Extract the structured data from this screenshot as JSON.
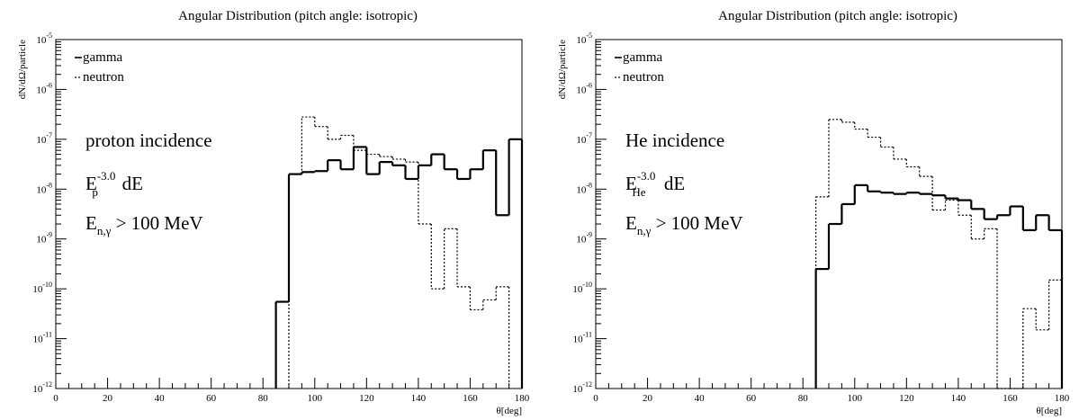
{
  "chart_data": [
    {
      "type": "line",
      "title": "Angular Distribution (pitch angle: isotropic)",
      "xlabel": "θ[deg]",
      "ylabel": "dN/dΩ/particle",
      "xlim": [
        0,
        180
      ],
      "ylim": [
        1e-12,
        1e-05
      ],
      "yscale": "log",
      "grid": false,
      "legend_placement": "top-left",
      "x_tick_labels": [
        "0",
        "20",
        "40",
        "60",
        "80",
        "100",
        "120",
        "140",
        "160",
        "180"
      ],
      "y_ticks": [
        {
          "base": "10",
          "exp": "-12"
        },
        {
          "base": "10",
          "exp": "-11"
        },
        {
          "base": "10",
          "exp": "-10"
        },
        {
          "base": "10",
          "exp": "-9"
        },
        {
          "base": "10",
          "exp": "-8"
        },
        {
          "base": "10",
          "exp": "-7"
        },
        {
          "base": "10",
          "exp": "-6"
        },
        {
          "base": "10",
          "exp": "-5"
        }
      ],
      "bin_width": 5,
      "annotations": {
        "line1": "proton incidence",
        "line2": {
          "base": "E",
          "sub": "p",
          "sup": "-3.0",
          "tail": " dE"
        },
        "line3": {
          "base": "E",
          "sub": "n,γ",
          "tail": " > 100 MeV"
        }
      },
      "series": [
        {
          "name": "gamma",
          "style": "solid",
          "bins": [
            [
              85,
              5.5e-11
            ],
            [
              90,
              2e-08
            ],
            [
              95,
              2.2e-08
            ],
            [
              100,
              2.3e-08
            ],
            [
              105,
              3.8e-08
            ],
            [
              110,
              2.5e-08
            ],
            [
              115,
              7e-08
            ],
            [
              120,
              2e-08
            ],
            [
              125,
              3.5e-08
            ],
            [
              130,
              3e-08
            ],
            [
              135,
              1.6e-08
            ],
            [
              140,
              3e-08
            ],
            [
              145,
              5e-08
            ],
            [
              150,
              2.5e-08
            ],
            [
              155,
              1.6e-08
            ],
            [
              160,
              2.5e-08
            ],
            [
              165,
              6e-08
            ],
            [
              170,
              3e-09
            ],
            [
              175,
              1e-07
            ]
          ]
        },
        {
          "name": "neutron",
          "style": "dotted",
          "bins": [
            [
              90,
              2e-08
            ],
            [
              95,
              2.8e-07
            ],
            [
              100,
              1.8e-07
            ],
            [
              105,
              1e-07
            ],
            [
              110,
              1.2e-07
            ],
            [
              115,
              6e-08
            ],
            [
              120,
              5e-08
            ],
            [
              125,
              4.5e-08
            ],
            [
              130,
              4e-08
            ],
            [
              135,
              3.5e-08
            ],
            [
              140,
              2e-09
            ],
            [
              145,
              1e-10
            ],
            [
              150,
              1.6e-09
            ],
            [
              155,
              1.1e-10
            ],
            [
              160,
              3.8e-11
            ],
            [
              165,
              6e-11
            ],
            [
              170,
              1.1e-10
            ]
          ]
        }
      ]
    },
    {
      "type": "line",
      "title": "Angular Distribution (pitch angle: isotropic)",
      "xlabel": "θ[deg]",
      "ylabel": "dN/dΩ/particle",
      "xlim": [
        0,
        180
      ],
      "ylim": [
        1e-12,
        1e-05
      ],
      "yscale": "log",
      "grid": false,
      "legend_placement": "top-left",
      "x_tick_labels": [
        "0",
        "20",
        "40",
        "60",
        "80",
        "100",
        "120",
        "140",
        "160",
        "180"
      ],
      "y_ticks": [
        {
          "base": "10",
          "exp": "-12"
        },
        {
          "base": "10",
          "exp": "-11"
        },
        {
          "base": "10",
          "exp": "-10"
        },
        {
          "base": "10",
          "exp": "-9"
        },
        {
          "base": "10",
          "exp": "-8"
        },
        {
          "base": "10",
          "exp": "-7"
        },
        {
          "base": "10",
          "exp": "-6"
        },
        {
          "base": "10",
          "exp": "-5"
        }
      ],
      "bin_width": 5,
      "annotations": {
        "line1": "He incidence",
        "line2": {
          "base": "E",
          "sub": "He",
          "sup": "-3.0",
          "tail": " dE"
        },
        "line3": {
          "base": "E",
          "sub": "n,γ",
          "tail": " > 100 MeV"
        }
      },
      "series": [
        {
          "name": "gamma",
          "style": "solid",
          "bins": [
            [
              85,
              2.5e-10
            ],
            [
              90,
              2e-09
            ],
            [
              95,
              5e-09
            ],
            [
              100,
              1.2e-08
            ],
            [
              105,
              9e-09
            ],
            [
              110,
              8.5e-09
            ],
            [
              115,
              8e-09
            ],
            [
              120,
              8.5e-09
            ],
            [
              125,
              8e-09
            ],
            [
              130,
              7.5e-09
            ],
            [
              135,
              6.5e-09
            ],
            [
              140,
              6e-09
            ],
            [
              145,
              4e-09
            ],
            [
              150,
              2.5e-09
            ],
            [
              155,
              3e-09
            ],
            [
              160,
              4.5e-09
            ],
            [
              165,
              1.5e-09
            ],
            [
              170,
              3e-09
            ],
            [
              175,
              1.5e-09
            ]
          ]
        },
        {
          "name": "neutron",
          "style": "dotted",
          "bins": [
            [
              85,
              7e-09
            ],
            [
              90,
              2.5e-07
            ],
            [
              95,
              2.2e-07
            ],
            [
              100,
              1.6e-07
            ],
            [
              105,
              1.1e-07
            ],
            [
              110,
              7e-08
            ],
            [
              115,
              4e-08
            ],
            [
              120,
              2.8e-08
            ],
            [
              125,
              1.8e-08
            ],
            [
              130,
              3.8e-09
            ],
            [
              135,
              6e-09
            ],
            [
              140,
              3e-09
            ],
            [
              145,
              1e-09
            ],
            [
              150,
              1.6e-09
            ],
            [
              155,
              1e-12
            ],
            [
              160,
              1e-12
            ],
            [
              165,
              4e-11
            ],
            [
              170,
              1.5e-11
            ],
            [
              175,
              1.5e-10
            ]
          ]
        }
      ]
    }
  ]
}
